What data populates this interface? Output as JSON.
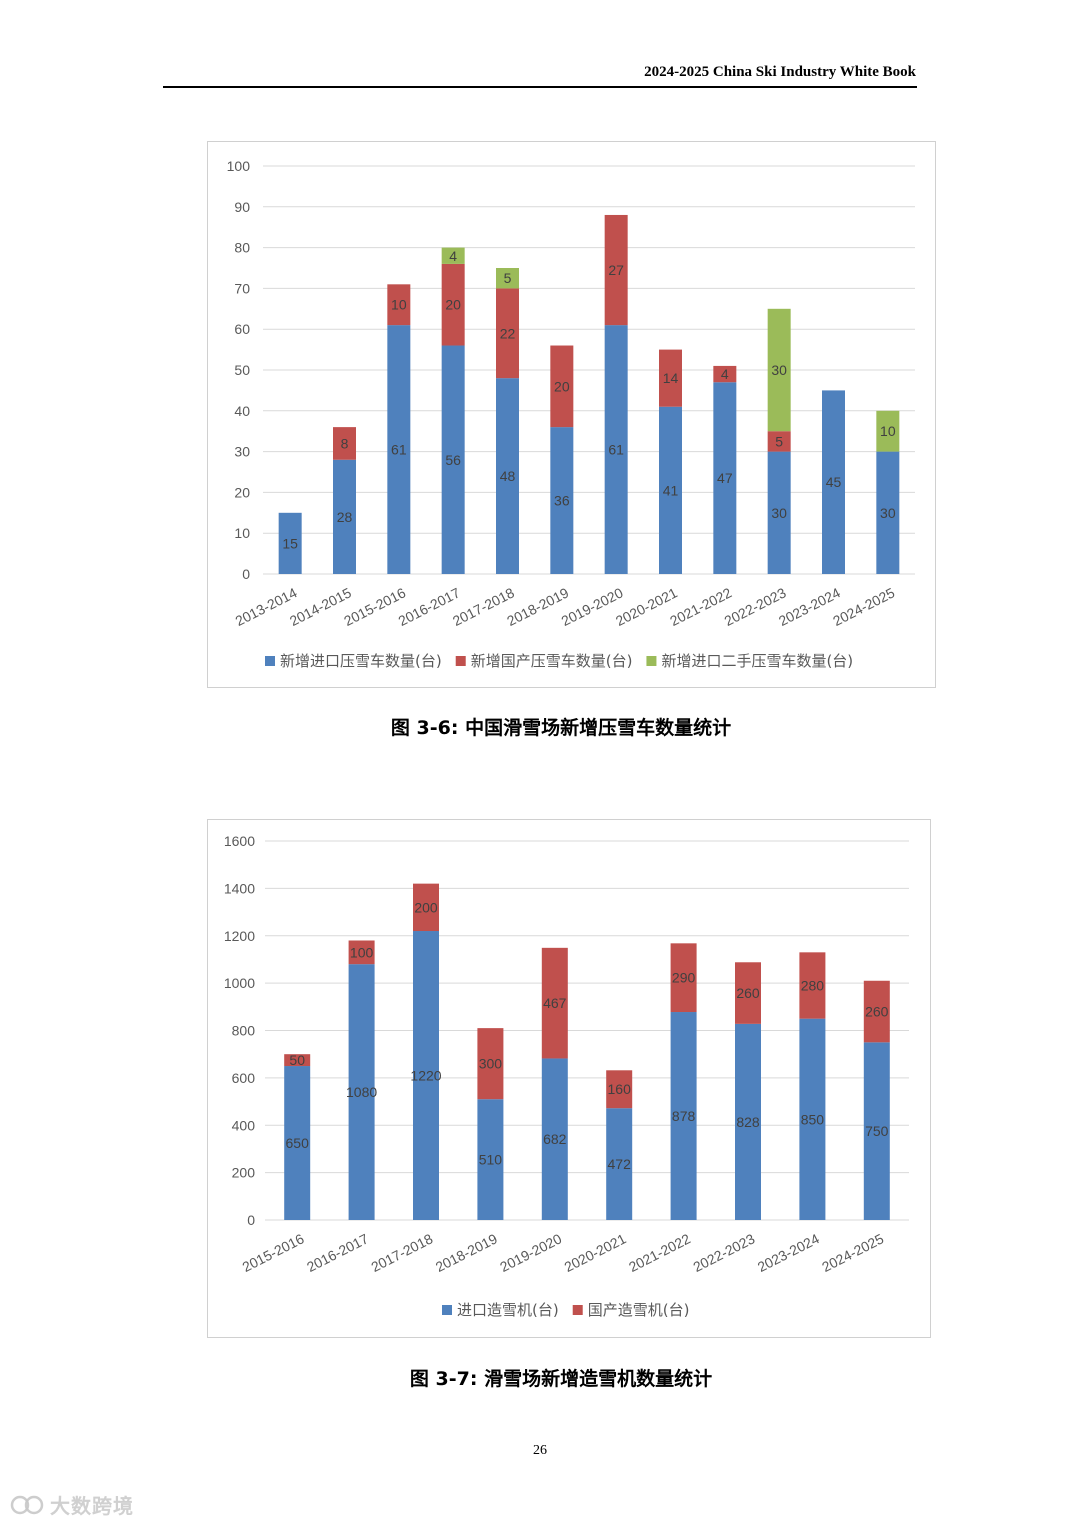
{
  "header": {
    "title": "2024-2025 China Ski Industry White Book"
  },
  "page_number": "26",
  "watermark": {
    "text": "大数跨境"
  },
  "colors": {
    "blue": "#4f81bd",
    "red": "#c0504d",
    "green": "#9bbb59",
    "grid": "#d9d9d9",
    "axis_text": "#595959"
  },
  "figures": [
    {
      "caption": "图  3-6:  中国滑雪场新增压雪车数量统计"
    },
    {
      "caption": "图  3-7:  滑雪场新增造雪机数量统计"
    }
  ],
  "chart_data": [
    {
      "type": "bar",
      "stacked": true,
      "categories": [
        "2013-2014",
        "2014-2015",
        "2015-2016",
        "2016-2017",
        "2017-2018",
        "2018-2019",
        "2019-2020",
        "2020-2021",
        "2021-2022",
        "2022-2023",
        "2023-2024",
        "2024-2025"
      ],
      "series": [
        {
          "name": "新增进口压雪车数量(台)",
          "color": "#4f81bd",
          "values": [
            15,
            28,
            61,
            56,
            48,
            36,
            61,
            41,
            47,
            30,
            45,
            30
          ]
        },
        {
          "name": "新增国产压雪车数量(台)",
          "color": "#c0504d",
          "values": [
            0,
            8,
            10,
            20,
            22,
            20,
            27,
            14,
            4,
            5,
            0,
            0
          ]
        },
        {
          "name": "新增进口二手压雪车数量(台)",
          "color": "#9bbb59",
          "values": [
            0,
            0,
            0,
            4,
            5,
            0,
            0,
            0,
            0,
            30,
            0,
            10
          ]
        }
      ],
      "ylim": [
        0,
        100
      ],
      "yticks": [
        0,
        10,
        20,
        30,
        40,
        50,
        60,
        70,
        80,
        90,
        100
      ],
      "grid": true,
      "legend_position": "bottom"
    },
    {
      "type": "bar",
      "stacked": true,
      "categories": [
        "2015-2016",
        "2016-2017",
        "2017-2018",
        "2018-2019",
        "2019-2020",
        "2020-2021",
        "2021-2022",
        "2022-2023",
        "2023-2024",
        "2024-2025"
      ],
      "series": [
        {
          "name": "进口造雪机(台)",
          "color": "#4f81bd",
          "values": [
            650,
            1080,
            1220,
            510,
            682,
            472,
            878,
            828,
            850,
            750
          ]
        },
        {
          "name": "国产造雪机(台)",
          "color": "#c0504d",
          "values": [
            50,
            100,
            200,
            300,
            467,
            160,
            290,
            260,
            280,
            260
          ]
        }
      ],
      "ylim": [
        0,
        1600
      ],
      "yticks": [
        0,
        200,
        400,
        600,
        800,
        1000,
        1200,
        1400,
        1600
      ],
      "grid": true,
      "legend_position": "bottom"
    }
  ]
}
